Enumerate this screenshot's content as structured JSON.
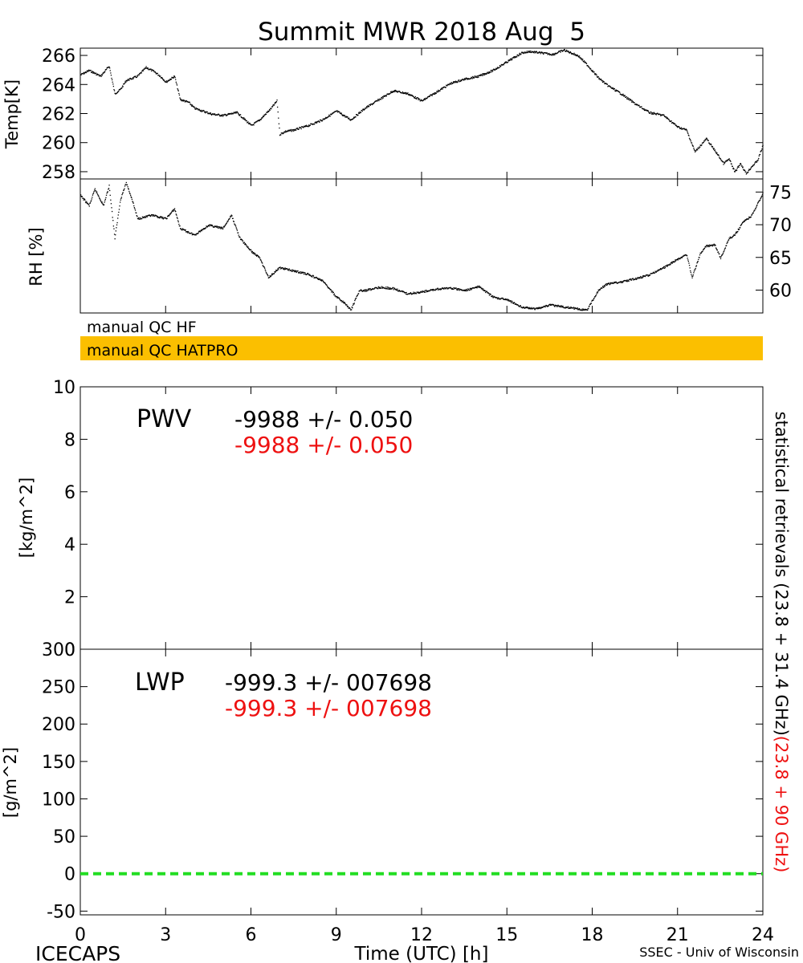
{
  "title": "Summit MWR 2018 Aug  5",
  "footer": {
    "left": "ICECAPS",
    "center": "Time (UTC) [h]",
    "right": "SSEC - Univ of Wisconsin"
  },
  "colors": {
    "red": "#ee1111",
    "qc_bar": "#fbbf00",
    "zero_line": "#22dd22"
  },
  "x_axis": {
    "range": [
      0,
      24
    ],
    "ticks": [
      "0",
      "3",
      "6",
      "9",
      "12",
      "15",
      "18",
      "21",
      "24"
    ]
  },
  "qc": {
    "label_hf": "manual QC HF",
    "label_hatpro": "manual QC HATPRO"
  },
  "pwv": {
    "label": "PWV",
    "value_black": "-9988 +/- 0.050",
    "value_red": "-9988 +/- 0.050"
  },
  "lwp": {
    "label": "LWP",
    "value_black": "-999.3 +/- 007698",
    "value_red": "-999.3 +/- 007698"
  },
  "right_label": {
    "black": "statistical retrievals (23.8 + 31.4 GHz)",
    "red": "(23.8 + 90 GHz)"
  },
  "chart_data": [
    {
      "type": "scatter",
      "panel": "temperature",
      "ylabel": "Temp[K]",
      "ylim": [
        257.5,
        266.5
      ],
      "yticks": [
        258,
        260,
        262,
        264,
        266
      ],
      "series": [
        {
          "x": [
            0,
            0.3,
            0.7,
            1.0,
            1.2,
            1.4,
            1.6,
            2.0,
            2.3,
            2.6,
            2.8,
            3.0,
            3.3,
            3.5,
            3.8,
            4.0,
            4.3,
            4.6,
            5.0,
            5.5,
            6.0,
            6.3,
            6.7,
            6.9,
            7.0,
            7.2,
            7.5,
            8.0,
            8.5,
            9.0,
            9.5,
            10.0,
            10.5,
            11.0,
            11.5,
            12.0,
            12.5,
            13.0,
            13.5,
            14.0,
            14.5,
            15.0,
            15.5,
            15.8,
            16.2,
            16.6,
            17.0,
            17.5,
            17.8,
            18.2,
            18.5,
            19.0,
            19.5,
            20.0,
            20.5,
            21.0,
            21.3,
            21.6,
            22.0,
            22.4,
            22.6,
            22.8,
            23.0,
            23.2,
            23.4,
            23.6,
            23.8,
            24.0
          ],
          "y": [
            264.7,
            265.0,
            264.6,
            265.3,
            263.4,
            263.7,
            264.3,
            264.6,
            265.2,
            264.9,
            264.6,
            264.2,
            264.6,
            263.0,
            262.8,
            262.4,
            262.2,
            262.0,
            261.9,
            262.1,
            261.2,
            261.6,
            262.4,
            262.9,
            260.6,
            260.8,
            260.9,
            261.2,
            261.6,
            262.2,
            261.6,
            262.4,
            263.0,
            263.6,
            263.4,
            262.9,
            263.5,
            264.1,
            264.4,
            264.6,
            265.0,
            265.6,
            266.2,
            266.3,
            266.2,
            266.1,
            266.4,
            266.0,
            265.4,
            264.5,
            264.0,
            263.4,
            262.7,
            262.1,
            261.9,
            261.1,
            260.9,
            259.4,
            260.3,
            259.2,
            258.6,
            258.9,
            258.0,
            258.6,
            257.9,
            258.4,
            258.8,
            259.9
          ]
        }
      ]
    },
    {
      "type": "scatter",
      "panel": "relative-humidity",
      "ylabel": "RH [%]",
      "ylim": [
        56.5,
        77
      ],
      "yticks": [
        60,
        65,
        70,
        75
      ],
      "series": [
        {
          "x": [
            0,
            0.3,
            0.5,
            0.8,
            1.0,
            1.2,
            1.4,
            1.6,
            1.8,
            2.0,
            2.5,
            3.0,
            3.3,
            3.5,
            4.0,
            4.5,
            5.0,
            5.3,
            5.6,
            6.0,
            6.3,
            6.6,
            7.0,
            7.5,
            8.0,
            8.5,
            9.0,
            9.3,
            9.5,
            9.8,
            10.0,
            10.5,
            11.0,
            11.5,
            12.0,
            12.5,
            13.0,
            13.5,
            14.0,
            14.5,
            15.0,
            15.5,
            16.0,
            16.5,
            17.0,
            17.5,
            17.8,
            18.2,
            18.5,
            19.0,
            19.5,
            20.0,
            20.5,
            21.0,
            21.3,
            21.5,
            21.8,
            22.0,
            22.3,
            22.5,
            22.8,
            23.0,
            23.3,
            23.6,
            24.0
          ],
          "y": [
            74.5,
            73.0,
            75.5,
            73.0,
            76.0,
            68.0,
            74.0,
            76.5,
            74.0,
            71.0,
            71.5,
            71.0,
            72.5,
            69.5,
            68.5,
            70.0,
            69.5,
            71.5,
            68.0,
            66.0,
            65.0,
            62.0,
            63.5,
            63.0,
            62.5,
            61.5,
            59.0,
            58.0,
            57.0,
            60.0,
            60.0,
            60.5,
            60.3,
            59.5,
            59.8,
            60.2,
            60.4,
            60.0,
            60.6,
            59.0,
            58.6,
            57.5,
            57.2,
            57.8,
            57.5,
            57.2,
            57.0,
            60.0,
            61.0,
            61.3,
            61.8,
            62.4,
            63.5,
            64.8,
            65.5,
            62.0,
            65.8,
            66.8,
            67.0,
            65.0,
            68.0,
            68.5,
            70.5,
            71.5,
            75.0
          ]
        }
      ]
    },
    {
      "type": "line",
      "panel": "pwv",
      "ylabel": "[kg/m^2]",
      "ylim": [
        0,
        10
      ],
      "yticks": [
        0,
        2,
        4,
        6,
        8,
        10
      ],
      "series": []
    },
    {
      "type": "line",
      "panel": "lwp",
      "ylabel": "[g/m^2]",
      "ylim": [
        -55,
        300
      ],
      "yticks": [
        -50,
        0,
        50,
        100,
        150,
        200,
        250,
        300
      ],
      "series": [
        {
          "x": [
            0,
            24
          ],
          "y": [
            0,
            0
          ]
        }
      ]
    }
  ]
}
